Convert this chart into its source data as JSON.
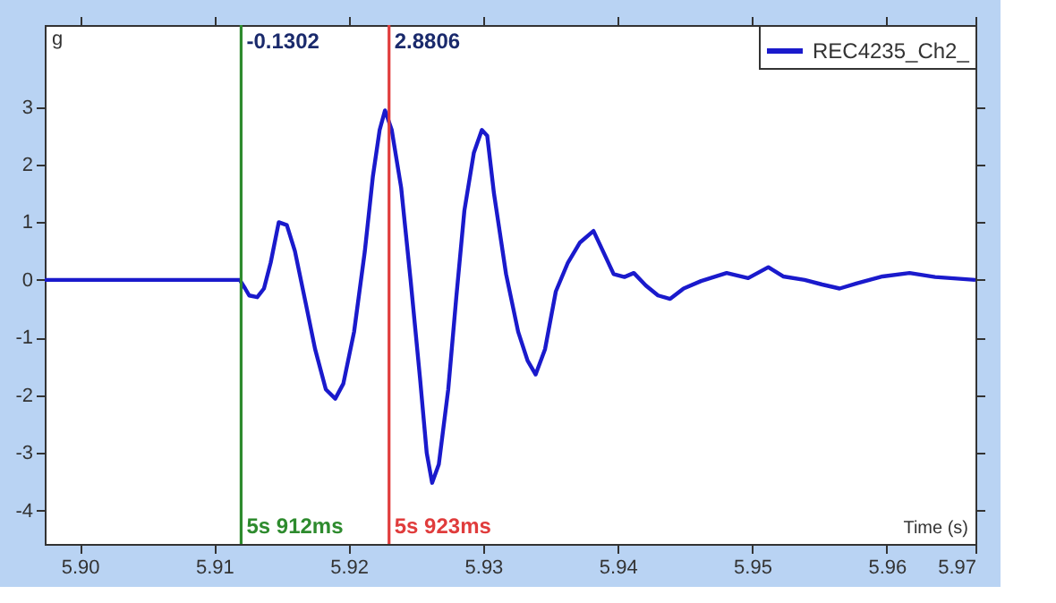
{
  "chart_data": {
    "type": "line",
    "xlabel": "Time (s)",
    "ylabel": "g",
    "x": [
      5.8974,
      5.9119,
      5.9123,
      5.9126,
      5.9132,
      5.9137,
      5.9142,
      5.9148,
      5.9154,
      5.916,
      5.9168,
      5.9175,
      5.9183,
      5.919,
      5.9196,
      5.9204,
      5.9212,
      5.9218,
      5.9223,
      5.9227,
      5.9232,
      5.9239,
      5.9246,
      5.9253,
      5.9258,
      5.9262,
      5.9267,
      5.9274,
      5.928,
      5.9286,
      5.9293,
      5.9299,
      5.9303,
      5.9308,
      5.9317,
      5.9326,
      5.9333,
      5.9339,
      5.9346,
      5.9354,
      5.9363,
      5.9372,
      5.9382,
      5.9388,
      5.9397,
      5.9405,
      5.9412,
      5.9421,
      5.943,
      5.9439,
      5.9449,
      5.9462,
      5.9481,
      5.9497,
      5.9512,
      5.9523,
      5.9539,
      5.9552,
      5.9565,
      5.9578,
      5.9597,
      5.9617,
      5.9636,
      5.9666
    ],
    "series": [
      {
        "name": "REC4235_Ch2_",
        "color": "#1a1acc",
        "values": [
          0,
          0,
          -0.15,
          -0.27,
          -0.3,
          -0.15,
          0.3,
          1.0,
          0.95,
          0.5,
          -0.4,
          -1.2,
          -1.9,
          -2.06,
          -1.8,
          -0.9,
          0.5,
          1.8,
          2.6,
          2.94,
          2.6,
          1.6,
          0,
          -1.7,
          -3.0,
          -3.52,
          -3.2,
          -1.9,
          -0.3,
          1.2,
          2.2,
          2.6,
          2.5,
          1.5,
          0.1,
          -0.9,
          -1.4,
          -1.64,
          -1.2,
          -0.2,
          0.3,
          0.65,
          0.85,
          0.55,
          0.1,
          0.05,
          0.12,
          -0.1,
          -0.27,
          -0.33,
          -0.15,
          -0.02,
          0.12,
          0.03,
          0.22,
          0.06,
          0,
          -0.08,
          -0.15,
          -0.06,
          0.06,
          0.12,
          0.05,
          0
        ]
      }
    ],
    "xlim": [
      5.8974,
      5.9666
    ],
    "xticks": [
      {
        "value": 5.9,
        "label": "5.90"
      },
      5.91,
      5.92,
      5.93,
      5.94,
      5.95,
      5.96,
      {
        "value": 5.9666,
        "label": "5.97"
      }
    ],
    "ylim": [
      -4.58,
      4.42
    ],
    "yticks": [
      -4,
      -3,
      -2,
      -1,
      0,
      1,
      2,
      3
    ],
    "ref_lines": [
      {
        "axis": "x",
        "value": 5.912,
        "label": "5s 912ms",
        "color": "#2e8b2e"
      },
      {
        "axis": "x",
        "value": 5.923,
        "label": "5s 923ms",
        "color": "#e03c3c"
      }
    ],
    "annotations": [
      "-0.1302",
      "2.8806"
    ],
    "legend": "top right",
    "grid": false,
    "line_style": "solid",
    "marker": "none"
  }
}
